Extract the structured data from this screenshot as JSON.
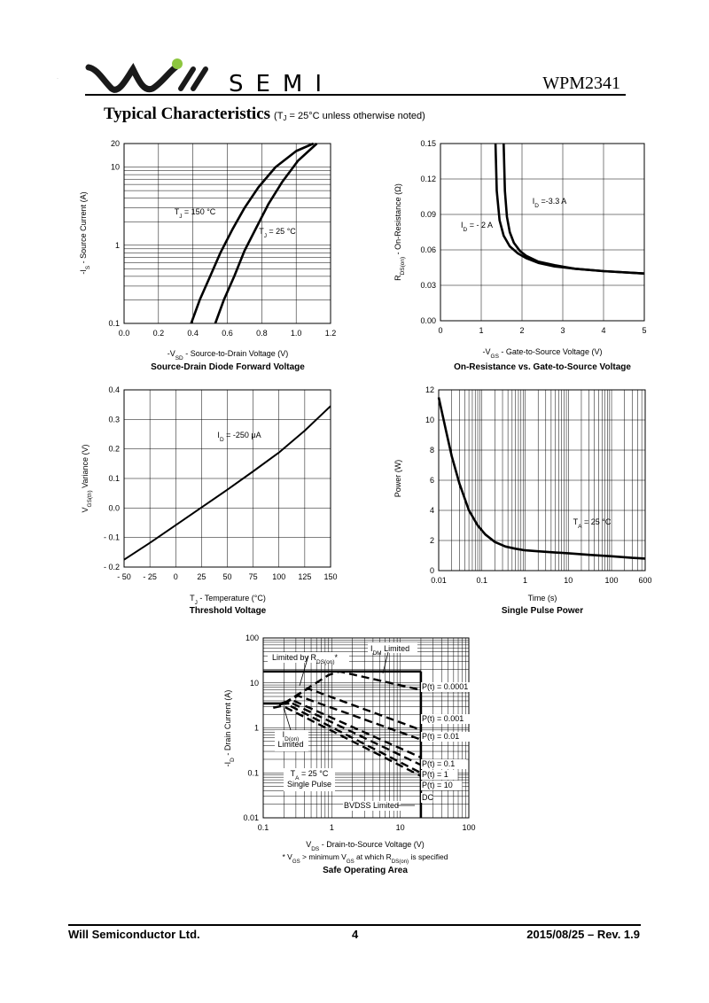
{
  "header": {
    "logo_text": "SEMI",
    "part_number": "WPM2341",
    "section_title": "Typical Characteristics",
    "section_note": "(T J = 25°C unless otherwise noted)",
    "logo_colors": {
      "wave": "#1a1a1a",
      "dot": "#8dc63f"
    }
  },
  "footer": {
    "company": "Will Semiconductor Ltd.",
    "page": "4",
    "date_rev": "2015/08/25 – Rev. 1.9"
  },
  "chart_data": [
    {
      "id": "diode",
      "type": "line",
      "title": "Source-Drain Diode Forward Voltage",
      "xlabel": "-VSD - Source-to-Drain Voltage (V)",
      "ylabel": "-IS - Source Current (A)",
      "xlim": [
        0,
        1.2
      ],
      "ylim": [
        0.1,
        20
      ],
      "yscale": "log",
      "xticks": [
        "0.0",
        "0.2",
        "0.4",
        "0.6",
        "0.8",
        "1.0",
        "1.2"
      ],
      "yticks": [
        "0.1",
        "1",
        "10",
        "20"
      ],
      "grid": true,
      "series": [
        {
          "name": "TJ = 150 °C",
          "x": [
            0.39,
            0.44,
            0.5,
            0.56,
            0.63,
            0.7,
            0.78,
            0.88,
            1.0,
            1.1
          ],
          "y": [
            0.1,
            0.2,
            0.4,
            0.8,
            1.6,
            3,
            5.5,
            10,
            16,
            20
          ]
        },
        {
          "name": "TJ = 25 °C",
          "x": [
            0.53,
            0.58,
            0.64,
            0.7,
            0.77,
            0.84,
            0.92,
            1.01,
            1.12
          ],
          "y": [
            0.1,
            0.2,
            0.4,
            0.85,
            1.7,
            3.4,
            6.5,
            12,
            20
          ]
        }
      ],
      "annotations": [
        {
          "text": "TJ = 150 °C"
        },
        {
          "text": "TJ = 25 °C"
        }
      ]
    },
    {
      "id": "rds",
      "type": "line",
      "title": "On-Resistance vs. Gate-to-Source Voltage",
      "xlabel": "-VGS - Gate-to-Source Voltage (V)",
      "ylabel": "RDS(on) - On-Resistance (Ω)",
      "xlim": [
        0,
        5
      ],
      "ylim": [
        0,
        0.15
      ],
      "xticks": [
        "0",
        "1",
        "2",
        "3",
        "4",
        "5"
      ],
      "yticks": [
        "0.00",
        "0.03",
        "0.06",
        "0.09",
        "0.12",
        "0.15"
      ],
      "grid": true,
      "series": [
        {
          "name": "ID = -2 A",
          "x": [
            1.35,
            1.38,
            1.45,
            1.55,
            1.7,
            1.9,
            2.1,
            2.4,
            2.8,
            3.3,
            4.0,
            5.0
          ],
          "y": [
            0.15,
            0.11,
            0.085,
            0.072,
            0.063,
            0.057,
            0.053,
            0.049,
            0.046,
            0.044,
            0.042,
            0.04
          ]
        },
        {
          "name": "ID = -3.3 A",
          "x": [
            1.55,
            1.58,
            1.63,
            1.7,
            1.8,
            1.95,
            2.1,
            2.4,
            2.8,
            3.3,
            4.0,
            5.0
          ],
          "y": [
            0.15,
            0.11,
            0.088,
            0.075,
            0.066,
            0.059,
            0.055,
            0.05,
            0.047,
            0.044,
            0.042,
            0.04
          ]
        }
      ],
      "annotations": [
        {
          "text": "ID = -3.3 A"
        },
        {
          "text": "ID = - 2 A"
        }
      ]
    },
    {
      "id": "vth",
      "type": "line",
      "title": "Threshold Voltage",
      "xlabel": "TJ - Temperature (°C)",
      "ylabel": "VGS(th) Variance (V)",
      "xlim": [
        -50,
        150
      ],
      "ylim": [
        -0.2,
        0.4
      ],
      "xticks": [
        "- 50",
        "- 25",
        "0",
        "25",
        "50",
        "75",
        "100",
        "125",
        "150"
      ],
      "yticks": [
        "- 0.2",
        "- 0.1",
        "0.0",
        "0.1",
        "0.2",
        "0.3",
        "0.4"
      ],
      "grid": true,
      "series": [
        {
          "name": "ID = -250 μA",
          "x": [
            -50,
            -25,
            0,
            25,
            50,
            75,
            100,
            125,
            150
          ],
          "y": [
            -0.175,
            -0.118,
            -0.058,
            0.002,
            0.062,
            0.124,
            0.188,
            0.262,
            0.345
          ]
        }
      ],
      "annotations": [
        {
          "text": "ID = -250 μA"
        }
      ]
    },
    {
      "id": "pulse",
      "type": "line",
      "title": "Single Pulse Power",
      "xlabel": "Time (s)",
      "ylabel": "Power (W)",
      "xlim": [
        0.01,
        600
      ],
      "ylim": [
        0,
        12
      ],
      "xscale": "log",
      "xticks": [
        "0.01",
        "0.1",
        "1",
        "10",
        "100",
        "600"
      ],
      "yticks": [
        "0",
        "2",
        "4",
        "6",
        "8",
        "10",
        "12"
      ],
      "grid": true,
      "series": [
        {
          "name": "TA = 25 °C",
          "x": [
            0.01,
            0.015,
            0.02,
            0.03,
            0.05,
            0.08,
            0.12,
            0.2,
            0.35,
            0.6,
            1,
            2,
            5,
            10,
            30,
            100,
            300,
            600
          ],
          "y": [
            11.5,
            9.2,
            7.6,
            5.8,
            4.0,
            3.0,
            2.4,
            1.9,
            1.6,
            1.45,
            1.35,
            1.28,
            1.2,
            1.15,
            1.05,
            0.95,
            0.85,
            0.8
          ]
        }
      ],
      "annotations": [
        {
          "text": "TA = 25 °C"
        }
      ]
    },
    {
      "id": "soa",
      "type": "line",
      "title": "Safe Operating Area",
      "xlabel": "VDS - Drain-to-Source Voltage (V)",
      "ylabel": "-ID - Drain Current (A)",
      "footnote": "* VGS > minimum VGS at which RDS(on) is specified",
      "xlim": [
        0.1,
        100
      ],
      "ylim": [
        0.01,
        100
      ],
      "xscale": "log",
      "yscale": "log",
      "xticks": [
        "0.1",
        "1",
        "10",
        "100"
      ],
      "yticks": [
        "0.01",
        "0.1",
        "1",
        "10",
        "100"
      ],
      "grid": true,
      "solid_lines": [
        {
          "name": "IDM Limited",
          "x": [
            0.1,
            20
          ],
          "y": [
            18,
            18
          ]
        },
        {
          "name": "ID(on) Limited",
          "x": [
            0.1,
            0.24
          ],
          "y": [
            3.5,
            3.5
          ]
        },
        {
          "name": "BVDSS Limited",
          "x": [
            20,
            20
          ],
          "y": [
            0.01,
            18
          ]
        }
      ],
      "series": [
        {
          "name": "P(t) = 0.0001",
          "x": [
            0.2,
            0.9,
            1.3,
            20
          ],
          "y": [
            3.5,
            15,
            18,
            7
          ]
        },
        {
          "name": "P(t) = 0.001",
          "x": [
            0.2,
            0.45,
            20
          ],
          "y": [
            3.5,
            7.5,
            0.9
          ]
        },
        {
          "name": "P(t) = 0.01",
          "x": [
            0.2,
            0.32,
            20
          ],
          "y": [
            3.5,
            5.2,
            0.55
          ]
        },
        {
          "name": "P(t) = 0.1",
          "x": [
            0.19,
            0.26,
            20
          ],
          "y": [
            3.5,
            4.2,
            0.22
          ]
        },
        {
          "name": "P(t) = 1",
          "x": [
            0.18,
            0.23,
            20
          ],
          "y": [
            3.5,
            3.9,
            0.15
          ]
        },
        {
          "name": "P(t) = 10",
          "x": [
            0.17,
            0.21,
            20
          ],
          "y": [
            3.3,
            3.5,
            0.1
          ]
        },
        {
          "name": "DC",
          "x": [
            0.14,
            0.19,
            20
          ],
          "y": [
            2.8,
            3.1,
            0.085
          ]
        }
      ],
      "annotations": [
        {
          "text": "Limited by RDS(on)*"
        },
        {
          "text": "IDM Limited"
        },
        {
          "text": "ID(on) Limited"
        },
        {
          "text": "TA = 25 °C"
        },
        {
          "text": "Single Pulse"
        },
        {
          "text": "BVDSS Limited"
        }
      ]
    }
  ]
}
